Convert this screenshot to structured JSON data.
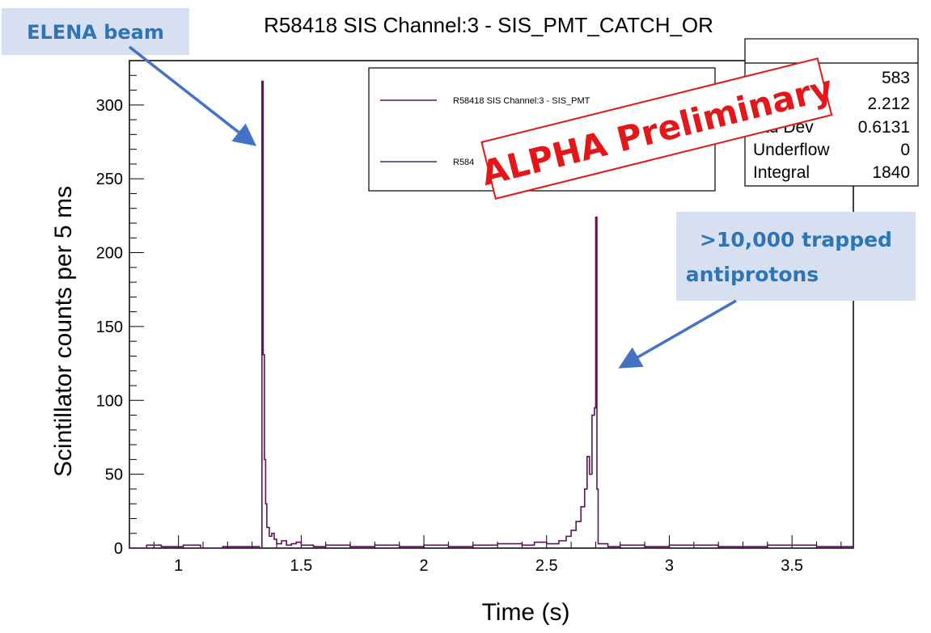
{
  "chart_data": {
    "type": "line",
    "title": "R58418 SIS Channel:3 - SIS_PMT_CATCH_OR",
    "xlabel": "Time (s)",
    "ylabel": "Scintillator counts per 5 ms",
    "xlim": [
      0.8,
      3.75
    ],
    "ylim": [
      0,
      330
    ],
    "x_ticks": [
      1,
      1.5,
      2,
      2.5,
      3,
      3.5
    ],
    "x_tick_labels": [
      "1",
      "1.5",
      "2",
      "2.5",
      "3",
      "3.5"
    ],
    "y_ticks": [
      0,
      50,
      100,
      150,
      200,
      250,
      300
    ],
    "y_tick_labels": [
      "0",
      "50",
      "100",
      "150",
      "200",
      "250",
      "300"
    ],
    "grid": false,
    "legend_position": "top-center",
    "color": "#5a1458",
    "series": [
      {
        "name": "R58418 SIS Channel:3 - SIS_PMT_CATCH_OR",
        "points": [
          [
            0.8,
            0
          ],
          [
            0.87,
            2
          ],
          [
            0.93,
            1
          ],
          [
            1.02,
            2
          ],
          [
            1.09,
            0
          ],
          [
            1.18,
            1
          ],
          [
            1.3,
            1
          ],
          [
            1.33,
            0
          ],
          [
            1.34,
            316
          ],
          [
            1.345,
            131
          ],
          [
            1.35,
            60
          ],
          [
            1.355,
            30
          ],
          [
            1.36,
            14
          ],
          [
            1.37,
            8
          ],
          [
            1.38,
            10
          ],
          [
            1.39,
            6
          ],
          [
            1.4,
            3
          ],
          [
            1.42,
            5
          ],
          [
            1.44,
            2
          ],
          [
            1.46,
            3
          ],
          [
            1.48,
            4
          ],
          [
            1.5,
            2
          ],
          [
            1.55,
            1
          ],
          [
            1.6,
            2
          ],
          [
            1.7,
            1
          ],
          [
            1.8,
            2
          ],
          [
            1.9,
            1
          ],
          [
            2.0,
            2
          ],
          [
            2.1,
            1
          ],
          [
            2.2,
            2
          ],
          [
            2.3,
            3
          ],
          [
            2.4,
            2
          ],
          [
            2.45,
            4
          ],
          [
            2.5,
            3
          ],
          [
            2.55,
            5
          ],
          [
            2.58,
            8
          ],
          [
            2.6,
            12
          ],
          [
            2.62,
            18
          ],
          [
            2.64,
            28
          ],
          [
            2.655,
            40
          ],
          [
            2.665,
            62
          ],
          [
            2.675,
            50
          ],
          [
            2.685,
            90
          ],
          [
            2.695,
            95
          ],
          [
            2.7,
            224
          ],
          [
            2.705,
            40
          ],
          [
            2.71,
            3
          ],
          [
            2.75,
            1
          ],
          [
            2.8,
            2
          ],
          [
            2.9,
            1
          ],
          [
            3.0,
            2
          ],
          [
            3.2,
            1
          ],
          [
            3.4,
            2
          ],
          [
            3.6,
            1
          ],
          [
            3.75,
            0
          ]
        ]
      }
    ],
    "legend_entries": [
      "R58418 SIS Channel:3 - SIS_PMT",
      "R584"
    ],
    "stats_box": {
      "rows": [
        {
          "label": "",
          "value": "583"
        },
        {
          "label": "",
          "value": "2.212"
        },
        {
          "label": "Std Dev",
          "value": "0.6131"
        },
        {
          "label": "Underflow",
          "value": "0"
        },
        {
          "label": "Integral",
          "value": "1840"
        }
      ]
    },
    "annotations": {
      "elena": {
        "text": "ELENA beam",
        "target": [
          1.335,
          270
        ]
      },
      "trapped": {
        "lines": [
          ">10,000 trapped",
          "antiprotons"
        ],
        "target": [
          2.71,
          115
        ]
      },
      "stamp": "ALPHA Preliminary"
    }
  }
}
